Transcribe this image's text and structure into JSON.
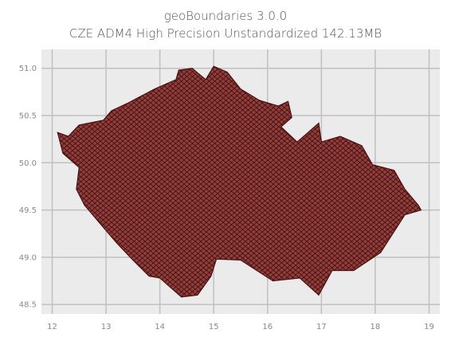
{
  "figure": {
    "title_line1": "geoBoundaries 3.0.0",
    "title_line2": "CZE ADM4 High Precision Unstandardized 142.13MB"
  },
  "chart_data": {
    "type": "map",
    "x_ticks": [
      "12",
      "13",
      "14",
      "15",
      "16",
      "17",
      "18",
      "19"
    ],
    "y_ticks": [
      "51.0",
      "50.5",
      "50.0",
      "49.5",
      "49.0",
      "48.5"
    ],
    "xlim": [
      11.8,
      19.2
    ],
    "ylim": [
      48.4,
      51.2
    ],
    "grid": true,
    "colors": {
      "plot_background": "#ebebeb",
      "grid": "#c0c0c0",
      "polygon_fill": "#f77a74",
      "polygon_edge": "#4a1010",
      "dense_fill": "#3a0f0f"
    },
    "outline_lonlat": [
      [
        12.1,
        50.32
      ],
      [
        12.3,
        50.28
      ],
      [
        12.5,
        50.4
      ],
      [
        12.95,
        50.45
      ],
      [
        13.1,
        50.55
      ],
      [
        13.4,
        50.63
      ],
      [
        13.9,
        50.78
      ],
      [
        14.3,
        50.88
      ],
      [
        14.35,
        50.98
      ],
      [
        14.6,
        51.0
      ],
      [
        14.85,
        50.88
      ],
      [
        15.0,
        51.02
      ],
      [
        15.25,
        50.96
      ],
      [
        15.5,
        50.78
      ],
      [
        15.85,
        50.66
      ],
      [
        16.2,
        50.6
      ],
      [
        16.38,
        50.65
      ],
      [
        16.45,
        50.48
      ],
      [
        16.25,
        50.38
      ],
      [
        16.55,
        50.22
      ],
      [
        16.95,
        50.42
      ],
      [
        17.0,
        50.22
      ],
      [
        17.35,
        50.28
      ],
      [
        17.75,
        50.18
      ],
      [
        17.95,
        49.98
      ],
      [
        18.35,
        49.92
      ],
      [
        18.55,
        49.72
      ],
      [
        18.8,
        49.55
      ],
      [
        18.85,
        49.5
      ],
      [
        18.55,
        49.45
      ],
      [
        18.1,
        49.05
      ],
      [
        17.6,
        48.86
      ],
      [
        17.2,
        48.86
      ],
      [
        16.95,
        48.6
      ],
      [
        16.6,
        48.78
      ],
      [
        16.1,
        48.75
      ],
      [
        15.5,
        48.97
      ],
      [
        15.05,
        48.98
      ],
      [
        14.95,
        48.8
      ],
      [
        14.7,
        48.6
      ],
      [
        14.4,
        48.58
      ],
      [
        14.0,
        48.78
      ],
      [
        13.8,
        48.8
      ],
      [
        13.5,
        48.97
      ],
      [
        13.2,
        49.15
      ],
      [
        12.9,
        49.35
      ],
      [
        12.6,
        49.55
      ],
      [
        12.45,
        49.72
      ],
      [
        12.5,
        49.95
      ],
      [
        12.2,
        50.1
      ]
    ]
  }
}
